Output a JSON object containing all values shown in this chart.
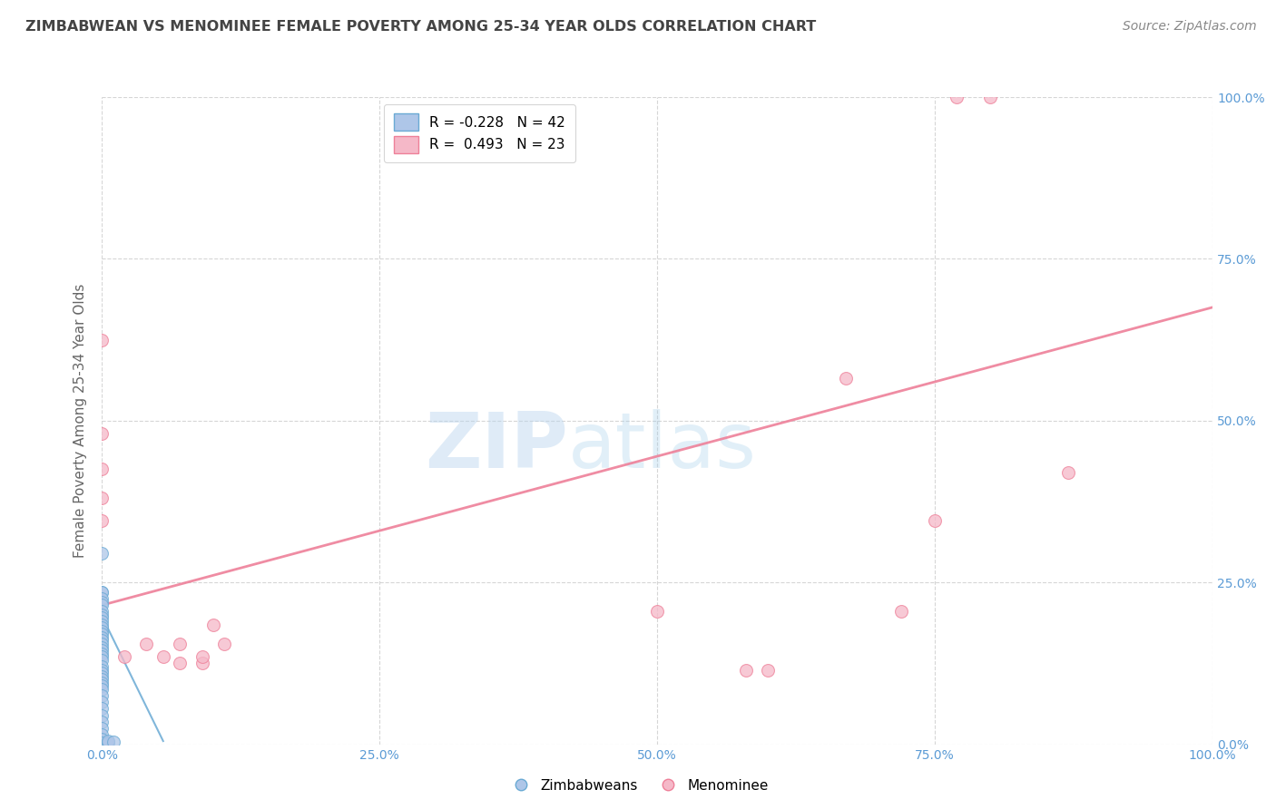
{
  "title": "ZIMBABWEAN VS MENOMINEE FEMALE POVERTY AMONG 25-34 YEAR OLDS CORRELATION CHART",
  "source": "Source: ZipAtlas.com",
  "ylabel": "Female Poverty Among 25-34 Year Olds",
  "watermark_zip": "ZIP",
  "watermark_atlas": "atlas",
  "legend_blue_r": "-0.228",
  "legend_blue_n": "42",
  "legend_pink_r": "0.493",
  "legend_pink_n": "23",
  "blue_fill": "#aec6e8",
  "blue_edge": "#6aaad4",
  "pink_fill": "#f5b8c8",
  "pink_edge": "#ee8099",
  "pink_line_color": "#ee8099",
  "blue_line_color": "#6aaad4",
  "blue_dots": [
    [
      0.0,
      0.295
    ],
    [
      0.0,
      0.235
    ],
    [
      0.0,
      0.235
    ],
    [
      0.0,
      0.225
    ],
    [
      0.0,
      0.22
    ],
    [
      0.0,
      0.215
    ],
    [
      0.0,
      0.205
    ],
    [
      0.0,
      0.2
    ],
    [
      0.0,
      0.195
    ],
    [
      0.0,
      0.19
    ],
    [
      0.0,
      0.185
    ],
    [
      0.0,
      0.18
    ],
    [
      0.0,
      0.175
    ],
    [
      0.0,
      0.17
    ],
    [
      0.0,
      0.165
    ],
    [
      0.0,
      0.16
    ],
    [
      0.0,
      0.155
    ],
    [
      0.0,
      0.15
    ],
    [
      0.0,
      0.145
    ],
    [
      0.0,
      0.14
    ],
    [
      0.0,
      0.135
    ],
    [
      0.0,
      0.13
    ],
    [
      0.0,
      0.12
    ],
    [
      0.0,
      0.115
    ],
    [
      0.0,
      0.11
    ],
    [
      0.0,
      0.105
    ],
    [
      0.0,
      0.1
    ],
    [
      0.0,
      0.095
    ],
    [
      0.0,
      0.09
    ],
    [
      0.0,
      0.085
    ],
    [
      0.0,
      0.075
    ],
    [
      0.0,
      0.065
    ],
    [
      0.0,
      0.055
    ],
    [
      0.0,
      0.045
    ],
    [
      0.0,
      0.035
    ],
    [
      0.0,
      0.025
    ],
    [
      0.0,
      0.015
    ],
    [
      0.0,
      0.008
    ],
    [
      0.0,
      0.002
    ],
    [
      0.005,
      0.002
    ],
    [
      0.005,
      0.005
    ],
    [
      0.01,
      0.003
    ]
  ],
  "pink_dots": [
    [
      0.0,
      0.625
    ],
    [
      0.0,
      0.48
    ],
    [
      0.0,
      0.425
    ],
    [
      0.0,
      0.38
    ],
    [
      0.0,
      0.345
    ],
    [
      0.02,
      0.135
    ],
    [
      0.04,
      0.155
    ],
    [
      0.055,
      0.135
    ],
    [
      0.07,
      0.155
    ],
    [
      0.07,
      0.125
    ],
    [
      0.09,
      0.125
    ],
    [
      0.09,
      0.135
    ],
    [
      0.1,
      0.185
    ],
    [
      0.11,
      0.155
    ],
    [
      0.5,
      0.205
    ],
    [
      0.58,
      0.115
    ],
    [
      0.6,
      0.115
    ],
    [
      0.67,
      0.565
    ],
    [
      0.72,
      0.205
    ],
    [
      0.75,
      0.345
    ],
    [
      0.77,
      1.0
    ],
    [
      0.8,
      1.0
    ],
    [
      0.87,
      0.42
    ]
  ],
  "pink_trendline_x": [
    0.0,
    1.0
  ],
  "pink_trendline_y": [
    0.215,
    0.675
  ],
  "blue_trendline_x": [
    -0.005,
    0.055
  ],
  "blue_trendline_y": [
    0.215,
    0.005
  ],
  "xlim": [
    0.0,
    1.0
  ],
  "ylim": [
    0.0,
    1.0
  ],
  "grid_ticks": [
    0.0,
    0.25,
    0.5,
    0.75,
    1.0
  ],
  "tick_labels": [
    "0.0%",
    "25.0%",
    "50.0%",
    "75.0%",
    "100.0%"
  ],
  "background_color": "#ffffff",
  "grid_color": "#cccccc",
  "title_color": "#444444",
  "source_color": "#888888",
  "tick_color": "#5b9bd5",
  "ylabel_color": "#666666"
}
